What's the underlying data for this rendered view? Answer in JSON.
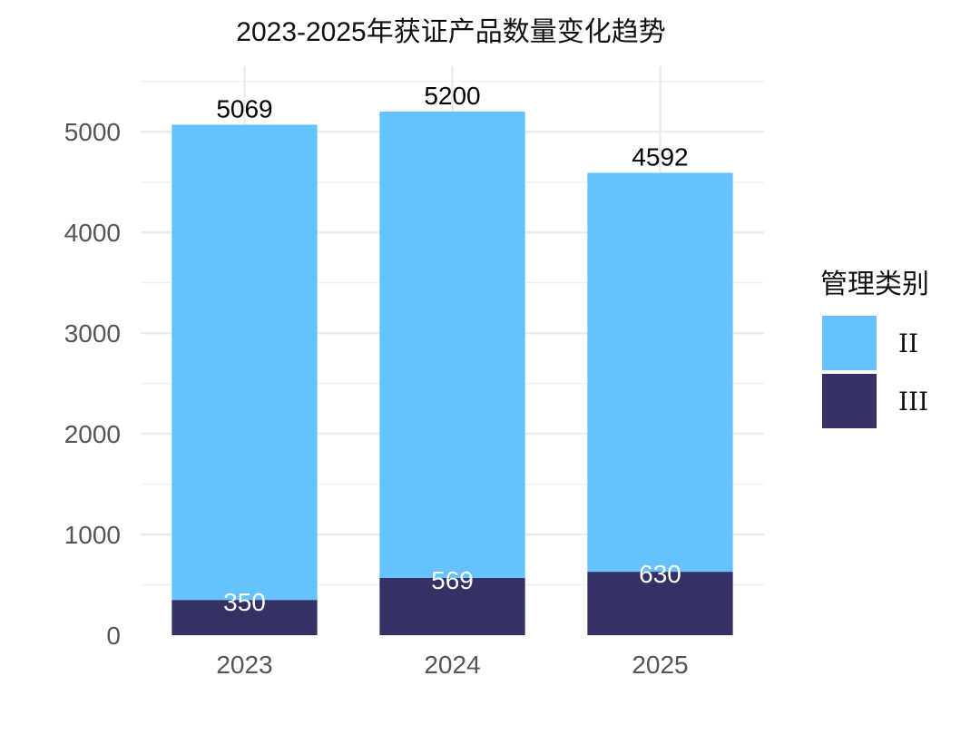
{
  "chart_data": {
    "type": "bar",
    "stacked": true,
    "title": "2023-2025年获证产品数量变化趋势",
    "categories": [
      "2023",
      "2024",
      "2025"
    ],
    "series": [
      {
        "name": "III",
        "values": [
          350,
          569,
          630
        ],
        "color": "#343264"
      },
      {
        "name": "II",
        "values": [
          4719,
          4631,
          3962
        ],
        "color": "#66c2ff"
      }
    ],
    "totals": [
      5069,
      5200,
      4592
    ],
    "segment_labels": {
      "III": [
        "350",
        "569",
        "630"
      ]
    },
    "total_labels": [
      "5069",
      "5200",
      "4592"
    ],
    "ylim": [
      0,
      5650
    ],
    "yticks": [
      0,
      1000,
      2000,
      3000,
      4000,
      5000
    ],
    "grid": true,
    "legend": {
      "title": "管理类别",
      "placement": "right",
      "entries": [
        {
          "label": "II",
          "color": "#66c2ff"
        },
        {
          "label": "III",
          "color": "#343264"
        }
      ]
    }
  }
}
